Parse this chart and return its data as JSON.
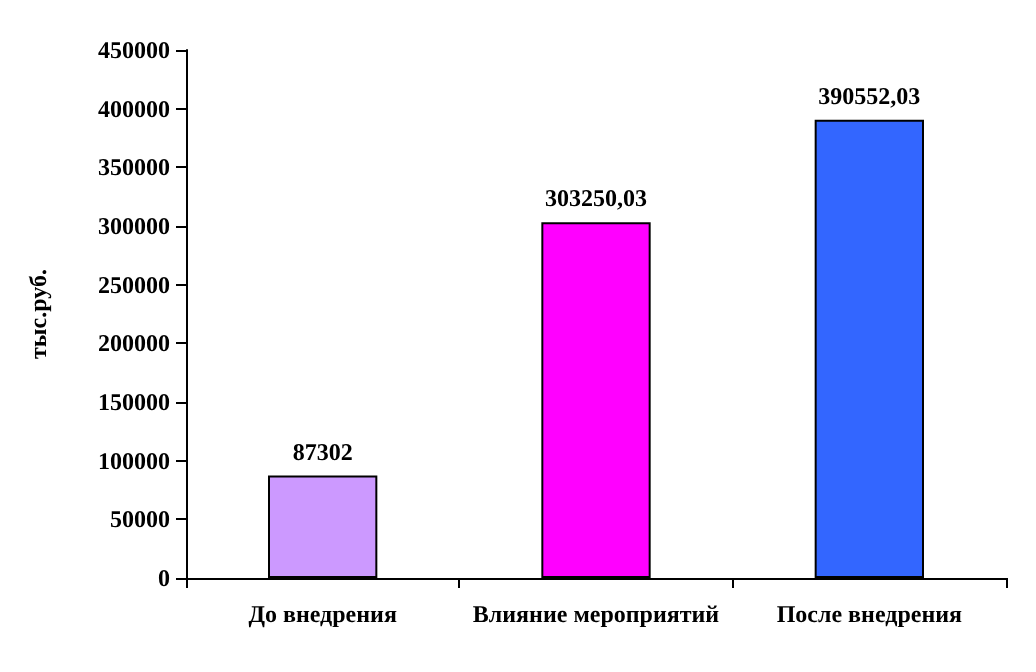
{
  "chart_data": {
    "type": "bar",
    "ylabel": "тыс.руб.",
    "categories": [
      "До внедрения",
      "Влияние мероприятий",
      "После внедрения"
    ],
    "values": [
      87302,
      303250.03,
      390552.03
    ],
    "value_labels": [
      "87302",
      "303250,03",
      "390552,03"
    ],
    "colors": [
      "#cc99ff",
      "#ff00ff",
      "#3366ff"
    ],
    "ylim": [
      0,
      450000
    ],
    "yticks": [
      0,
      50000,
      100000,
      150000,
      200000,
      250000,
      300000,
      350000,
      400000,
      450000
    ],
    "grid": false
  }
}
